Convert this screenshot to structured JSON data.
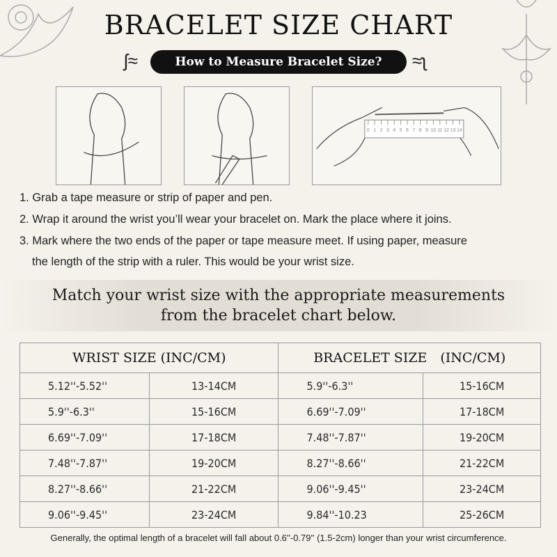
{
  "title": "BRACELET SIZE CHART",
  "subtitle": "How to Measure Bracelet Size?",
  "illustrations": [
    {
      "icon": "hand-wrap-icon"
    },
    {
      "icon": "hand-mark-icon"
    },
    {
      "icon": "ruler-measure-icon",
      "ruler_ticks": [
        "0",
        "1",
        "2",
        "3",
        "4",
        "5",
        "6",
        "7",
        "8",
        "9",
        "10",
        "11",
        "12",
        "13",
        "14"
      ]
    }
  ],
  "steps": [
    "1. Grab a tape measure or strip of paper and pen.",
    "2. Wrap it around the wrist you’ll wear your bracelet on. Mark the place where it joins.",
    "3. Mark where the two ends of the paper or tape measure meet. If using paper, measure",
    "the length of the strip with a ruler. This would be your wrist size."
  ],
  "banner": {
    "line1": "Match your wrist size with the appropriate measurements",
    "line2": "from the bracelet chart below."
  },
  "table": {
    "headers": [
      "WRIST SIZE (INC/CM)",
      "BRACELET SIZE (INC/CM)"
    ],
    "rows": [
      [
        "5.12''-5.52''",
        "13-14CM",
        "5.9''-6.3''",
        "15-16CM"
      ],
      [
        "5.9''-6.3''",
        "15-16CM",
        "6.69''-7.09''",
        "17-18CM"
      ],
      [
        "6.69''-7.09''",
        "17-18CM",
        "7.48''-7.87''",
        "19-20CM"
      ],
      [
        "7.48''-7.87''",
        "19-20CM",
        "8.27''-8.66''",
        "21-22CM"
      ],
      [
        "8.27''-8.66''",
        "21-22CM",
        "9.06''-9.45''",
        "23-24CM"
      ],
      [
        "9.06''-9.45''",
        "23-24CM",
        "9.84''-10.23",
        "25-26CM"
      ]
    ]
  },
  "footer": "Generally, the optimal length of a bracelet will fall about 0.6''-0.79'' (1.5-2cm) longer than your wrist circumference."
}
